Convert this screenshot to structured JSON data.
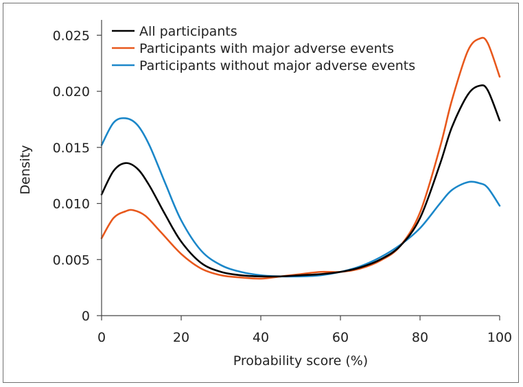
{
  "chart_data": {
    "type": "line",
    "title": "",
    "xlabel": "Probability score (%)",
    "ylabel": "Density",
    "xlim": [
      0,
      100
    ],
    "ylim": [
      0,
      0.026
    ],
    "x_ticks": [
      0,
      20,
      40,
      60,
      80,
      100
    ],
    "x_tick_labels": [
      "0",
      "20",
      "40",
      "60",
      "80",
      "100"
    ],
    "y_ticks": [
      0,
      0.005,
      0.01,
      0.015,
      0.02,
      0.025
    ],
    "y_tick_labels": [
      "0",
      "0.005",
      "0.010",
      "0.015",
      "0.020",
      "0.025"
    ],
    "grid": false,
    "legend_position": "top-left",
    "series": [
      {
        "name": "All participants",
        "color": "#000000",
        "x": [
          0,
          3,
          6,
          9,
          12,
          16,
          20,
          25,
          30,
          35,
          40,
          45,
          50,
          55,
          60,
          65,
          70,
          75,
          80,
          85,
          88,
          92,
          95,
          97,
          100
        ],
        "y": [
          0.0108,
          0.0129,
          0.0136,
          0.0131,
          0.0116,
          0.009,
          0.0066,
          0.0047,
          0.0039,
          0.0036,
          0.0035,
          0.0035,
          0.0036,
          0.0037,
          0.0039,
          0.0043,
          0.005,
          0.0062,
          0.0087,
          0.0135,
          0.0168,
          0.0197,
          0.0205,
          0.0201,
          0.0174
        ]
      },
      {
        "name": "Participants with major adverse events",
        "color": "#e8581c",
        "x": [
          0,
          3,
          6,
          8,
          11,
          15,
          20,
          25,
          30,
          35,
          40,
          45,
          50,
          55,
          60,
          65,
          70,
          75,
          80,
          85,
          88,
          92,
          95,
          97,
          100
        ],
        "y": [
          0.0069,
          0.0087,
          0.0093,
          0.0094,
          0.0089,
          0.0074,
          0.0055,
          0.0042,
          0.0036,
          0.0034,
          0.0033,
          0.0035,
          0.0037,
          0.0039,
          0.0039,
          0.0042,
          0.0049,
          0.0062,
          0.0092,
          0.015,
          0.0192,
          0.0236,
          0.0247,
          0.0243,
          0.0213
        ]
      },
      {
        "name": "Participants without major adverse events",
        "color": "#1b87c9",
        "x": [
          0,
          3,
          6,
          9,
          12,
          16,
          20,
          25,
          30,
          35,
          40,
          45,
          50,
          55,
          60,
          65,
          70,
          75,
          80,
          85,
          88,
          92,
          95,
          97,
          100
        ],
        "y": [
          0.0152,
          0.0172,
          0.0176,
          0.017,
          0.0152,
          0.0118,
          0.0085,
          0.0058,
          0.0045,
          0.0039,
          0.0036,
          0.0035,
          0.0035,
          0.0036,
          0.0039,
          0.0044,
          0.0052,
          0.0063,
          0.0078,
          0.01,
          0.0112,
          0.0119,
          0.0118,
          0.0114,
          0.0098
        ]
      }
    ]
  }
}
